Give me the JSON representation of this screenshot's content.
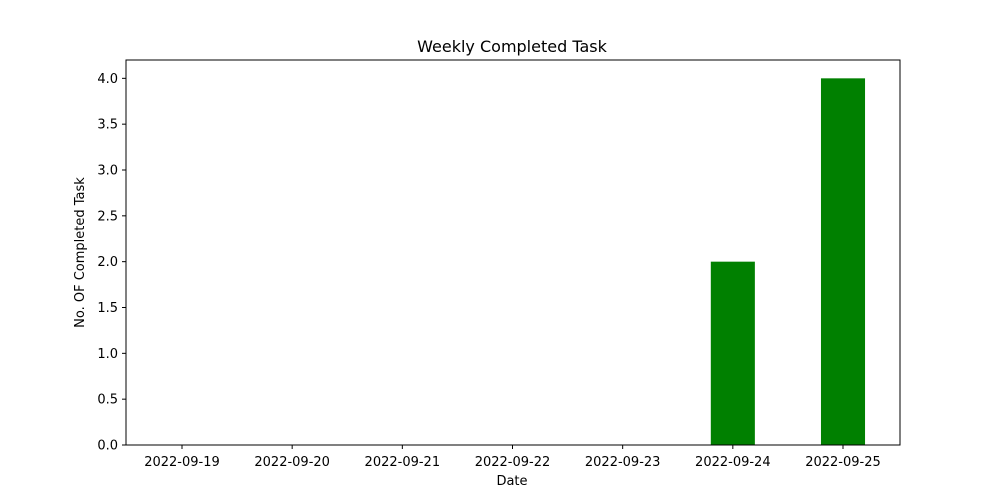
{
  "chart_data": {
    "type": "bar",
    "title": "Weekly Completed Task",
    "xlabel": "Date",
    "ylabel": "No. OF Completed Task",
    "categories": [
      "2022-09-19",
      "2022-09-20",
      "2022-09-21",
      "2022-09-22",
      "2022-09-23",
      "2022-09-24",
      "2022-09-25"
    ],
    "values": [
      0,
      0,
      0,
      0,
      0,
      2,
      4
    ],
    "ylim": [
      0,
      4.2
    ],
    "yticks": [
      "0.0",
      "0.5",
      "1.0",
      "1.5",
      "2.0",
      "2.5",
      "3.0",
      "3.5",
      "4.0"
    ],
    "bar_color": "#008000",
    "grid": false,
    "legend": "none"
  }
}
